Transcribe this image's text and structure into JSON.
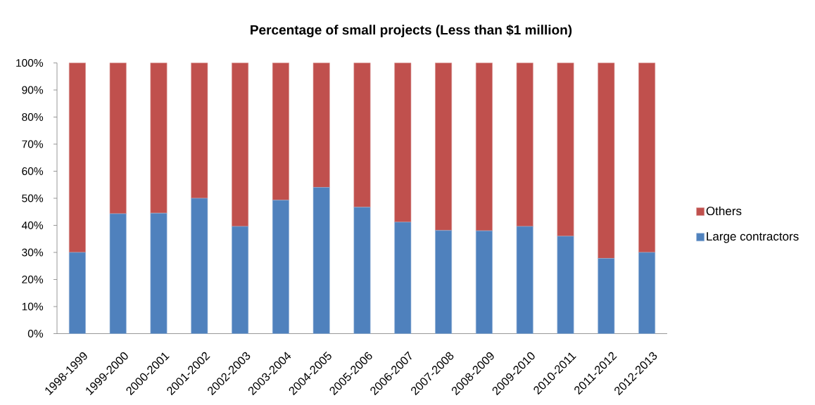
{
  "chart_data": {
    "type": "bar",
    "title": "Percentage of small projects (Less than $1 million)",
    "categories": [
      "1998-1999",
      "1999-2000",
      "2000-2001",
      "2001-2002",
      "2002-2003",
      "2003-2004",
      "2004-2005",
      "2005-2006",
      "2006-2007",
      "2007-2008",
      "2008-2009",
      "2009-2010",
      "2010-2011",
      "2011-2012",
      "2012-2013"
    ],
    "series": [
      {
        "name": "Large contractors",
        "color": "#4f81bd",
        "values": [
          30.0,
          44.3,
          44.5,
          50.0,
          39.6,
          49.3,
          54.0,
          46.7,
          41.2,
          38.1,
          38.0,
          39.6,
          36.0,
          27.8,
          30.0
        ]
      },
      {
        "name": "Others",
        "color": "#c0504d",
        "values": [
          70.0,
          55.7,
          55.5,
          50.0,
          60.4,
          50.7,
          46.0,
          53.3,
          58.8,
          61.9,
          62.0,
          60.4,
          64.0,
          72.2,
          70.0
        ]
      }
    ],
    "stacked": true,
    "ylim": [
      0,
      100
    ],
    "yticks": [
      {
        "value": 0,
        "label": "0%"
      },
      {
        "value": 10,
        "label": "10%"
      },
      {
        "value": 20,
        "label": "20%"
      },
      {
        "value": 30,
        "label": "30%"
      },
      {
        "value": 40,
        "label": "40%"
      },
      {
        "value": 50,
        "label": "50%"
      },
      {
        "value": 60,
        "label": "60%"
      },
      {
        "value": 70,
        "label": "70%"
      },
      {
        "value": 80,
        "label": "80%"
      },
      {
        "value": 90,
        "label": "90%"
      },
      {
        "value": 100,
        "label": "100%"
      }
    ],
    "legend": "right"
  }
}
